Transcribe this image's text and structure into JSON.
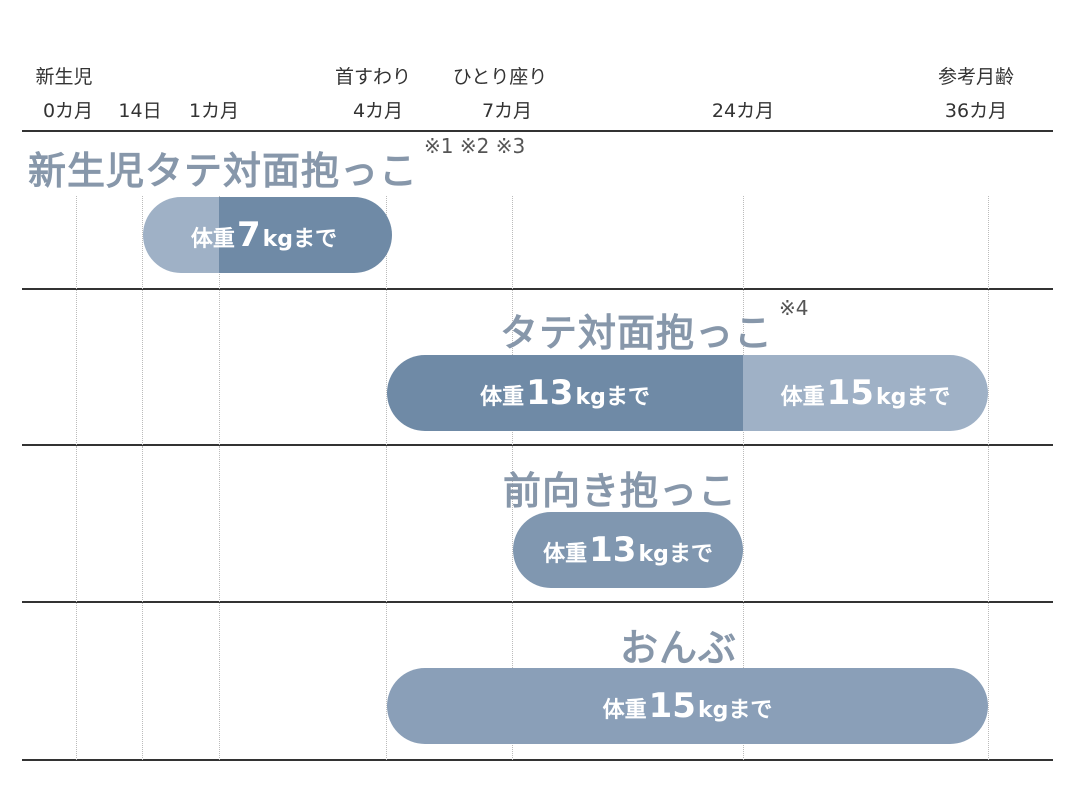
{
  "milestones": [
    {
      "label": "新生児",
      "tick": 0
    },
    {
      "label": "首すわり",
      "tick": 3
    },
    {
      "label": "ひとり座り",
      "tick": 4
    },
    {
      "label": "参考月齢",
      "tick": 6
    }
  ],
  "ticks": [
    "0カ月",
    "14日",
    "1カ月",
    "4カ月",
    "7カ月",
    "24カ月",
    "36カ月"
  ],
  "rows": [
    {
      "title": "新生児タテ対面抱っこ",
      "notes": "※1 ※2 ※3",
      "bar": [
        {
          "from": "14日",
          "to": "1カ月",
          "color": "#9fb1c6",
          "prefix": "体重",
          "value": "7",
          "suffix": "kgまで",
          "spanText": true
        },
        {
          "from": "1カ月",
          "to": "4カ月",
          "color": "#6f8aa6"
        }
      ]
    },
    {
      "title": "タテ対面抱っこ",
      "notes": "※4",
      "bar": [
        {
          "from": "4カ月",
          "to": "24カ月",
          "color": "#6f8aa6",
          "prefix": "体重",
          "value": "13",
          "suffix": "kgまで"
        },
        {
          "from": "24カ月",
          "to": "36カ月",
          "color": "#9fb1c6",
          "prefix": "体重",
          "value": "15",
          "suffix": "kgまで"
        }
      ]
    },
    {
      "title": "前向き抱っこ",
      "notes": "",
      "bar": [
        {
          "from": "7カ月",
          "to": "24カ月",
          "color": "#8097b0",
          "prefix": "体重",
          "value": "13",
          "suffix": "kgまで"
        }
      ]
    },
    {
      "title": "おんぶ",
      "notes": "",
      "bar": [
        {
          "from": "4カ月",
          "to": "36カ月",
          "color": "#8a9fb8",
          "prefix": "体重",
          "value": "15",
          "suffix": "kgまで"
        }
      ]
    }
  ],
  "colors": {
    "title": "#8797aa",
    "dark": "#6f8aa6",
    "light": "#9fb1c6"
  }
}
